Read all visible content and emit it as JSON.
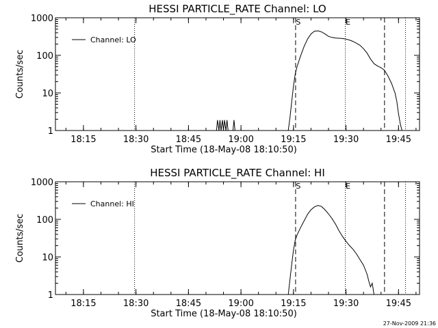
{
  "chart_data": [
    {
      "type": "line",
      "title": "HESSI PARTICLE_RATE Channel: LO",
      "xlabel": "Start Time (18-May-08 18:10:50)",
      "ylabel": "Counts/sec",
      "y_scale": "log",
      "ylim": [
        1,
        1000
      ],
      "xlim": [
        "18:07",
        "19:51"
      ],
      "x_ticks": [
        "18:15",
        "18:30",
        "18:45",
        "19:00",
        "19:15",
        "19:30",
        "19:45"
      ],
      "y_ticks": [
        "1",
        "10",
        "100",
        "1000"
      ],
      "legend": "top-left",
      "grid": false,
      "series": [
        {
          "name": "Channel: LO",
          "color": "#000000",
          "x": [
            "18:53.0",
            "18:53.3",
            "18:53.7",
            "18:54.0",
            "18:54.3",
            "18:54.7",
            "18:55.0",
            "18:55.3",
            "18:55.7",
            "18:56.0",
            "18:56.3",
            "18:57.7",
            "18:58.0",
            "18:58.3",
            "19:13.5",
            "19:14.0",
            "19:14.5",
            "19:15.0",
            "19:15.5",
            "19:16.0",
            "19:17.0",
            "19:18.0",
            "19:19.0",
            "19:20.0",
            "19:21.0",
            "19:22.0",
            "19:23.0",
            "19:24.0",
            "19:25.0",
            "19:26.0",
            "19:27.0",
            "19:28.0",
            "19:29.0",
            "19:30.0",
            "19:31.0",
            "19:32.0",
            "19:33.0",
            "19:34.0",
            "19:35.0",
            "19:36.0",
            "19:37.0",
            "19:38.0",
            "19:39.0",
            "19:40.0",
            "19:41.0",
            "19:42.0",
            "19:43.0",
            "19:44.0",
            "19:44.5",
            "19:45.0",
            "19:45.5",
            "19:46.0"
          ],
          "values": [
            1.0,
            1.9,
            1.0,
            1.9,
            1.0,
            1.9,
            1.0,
            1.9,
            1.0,
            1.9,
            1.0,
            1.0,
            1.9,
            1.0,
            1.0,
            2.2,
            6.0,
            15,
            32,
            50,
            95,
            170,
            270,
            370,
            440,
            450,
            420,
            370,
            320,
            300,
            290,
            285,
            280,
            270,
            255,
            235,
            210,
            185,
            150,
            115,
            80,
            60,
            52,
            47,
            40,
            28,
            18,
            10,
            6,
            2.8,
            1.5,
            1.0
          ]
        }
      ],
      "vlines": [
        {
          "x": "18:29.6",
          "style": "dotted"
        },
        {
          "x": "19:15.6",
          "style": "dashed",
          "label": "S"
        },
        {
          "x": "19:29.8",
          "style": "dotted",
          "label": "E"
        },
        {
          "x": "19:41.0",
          "style": "dashed"
        },
        {
          "x": "19:47.0",
          "style": "dotted"
        }
      ]
    },
    {
      "type": "line",
      "title": "HESSI PARTICLE_RATE Channel: HI",
      "xlabel": "Start Time (18-May-08 18:10:50)",
      "ylabel": "Counts/sec",
      "y_scale": "log",
      "ylim": [
        1,
        1000
      ],
      "xlim": [
        "18:07",
        "19:51"
      ],
      "x_ticks": [
        "18:15",
        "18:30",
        "18:45",
        "19:00",
        "19:15",
        "19:30",
        "19:45"
      ],
      "y_ticks": [
        "1",
        "10",
        "100",
        "1000"
      ],
      "legend": "top-left",
      "grid": false,
      "series": [
        {
          "name": "Channel: HI",
          "color": "#000000",
          "x": [
            "19:13.5",
            "19:14.0",
            "19:14.5",
            "19:15.0",
            "19:15.5",
            "19:16.0",
            "19:17.0",
            "19:18.0",
            "19:19.0",
            "19:20.0",
            "19:21.0",
            "19:22.0",
            "19:23.0",
            "19:24.0",
            "19:25.0",
            "19:26.0",
            "19:27.0",
            "19:28.0",
            "19:29.0",
            "19:30.0",
            "19:31.0",
            "19:32.0",
            "19:33.0",
            "19:34.0",
            "19:35.0",
            "19:36.0",
            "19:36.5",
            "19:37.0",
            "19:37.5",
            "19:38.0"
          ],
          "values": [
            1.0,
            2.5,
            6.5,
            15,
            28,
            38,
            60,
            90,
            135,
            180,
            215,
            235,
            220,
            180,
            140,
            105,
            75,
            50,
            35,
            26,
            20,
            16,
            12,
            8.5,
            6,
            3.5,
            2.3,
            1.6,
            2.0,
            1.0
          ]
        }
      ],
      "vlines": [
        {
          "x": "18:29.6",
          "style": "dotted"
        },
        {
          "x": "19:15.6",
          "style": "dashed",
          "label": "S"
        },
        {
          "x": "19:29.8",
          "style": "dotted",
          "label": "E"
        },
        {
          "x": "19:41.0",
          "style": "dashed"
        },
        {
          "x": "19:47.0",
          "style": "dotted"
        }
      ]
    }
  ],
  "footer": {
    "timestamp": "27-Nov-2009 21:36"
  }
}
